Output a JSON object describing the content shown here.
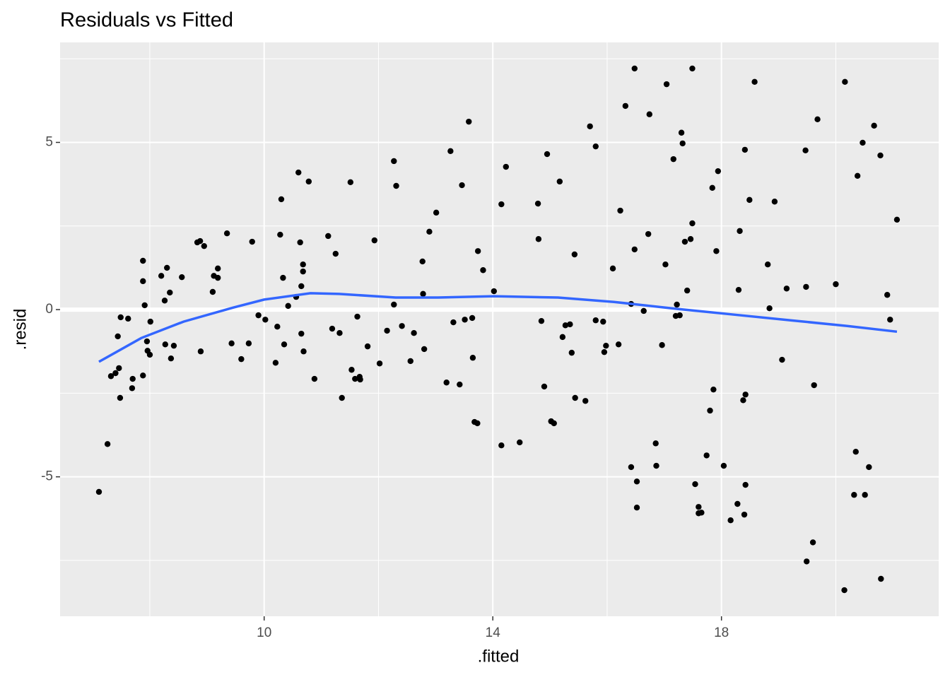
{
  "chart_data": {
    "type": "scatter",
    "title": "Residuals vs Fitted",
    "x_label": ".fitted",
    "y_label": ".resid",
    "color": "#000000",
    "panel_color": "#ebebeb",
    "grid": true,
    "xlim": [
      6.43,
      21.8
    ],
    "ylim": [
      -9.17,
      7.99
    ],
    "xticks": [
      10,
      14,
      18
    ],
    "yticks": [
      -5,
      0,
      5
    ],
    "xminor": [
      8,
      12,
      16,
      20
    ],
    "yminor": [
      -7.5,
      -2.5,
      2.5,
      7.5
    ],
    "hline": 0,
    "hline_color": "#ffffff",
    "x": [
      7.11,
      7.26,
      7.32,
      7.4,
      7.44,
      7.46,
      7.48,
      7.49,
      7.62,
      7.69,
      7.7,
      7.88,
      7.88,
      7.88,
      7.91,
      7.95,
      7.96,
      8.0,
      8.01,
      8.2,
      8.26,
      8.27,
      8.3,
      8.35,
      8.37,
      8.42,
      8.56,
      8.83,
      8.88,
      8.89,
      8.95,
      9.1,
      9.12,
      9.19,
      9.19,
      9.35,
      9.43,
      9.6,
      9.73,
      9.79,
      9.9,
      10.02,
      10.2,
      10.23,
      10.3,
      10.28,
      10.33,
      10.35,
      10.42,
      10.56,
      10.6,
      10.63,
      10.65,
      10.65,
      10.68,
      10.68,
      10.69,
      10.78,
      10.88,
      11.12,
      11.19,
      11.25,
      11.32,
      11.36,
      11.51,
      11.53,
      11.59,
      11.63,
      11.67,
      11.68,
      11.81,
      11.93,
      12.02,
      12.15,
      12.27,
      12.27,
      12.31,
      12.41,
      12.56,
      12.62,
      12.77,
      12.78,
      12.8,
      12.89,
      13.01,
      13.19,
      13.26,
      13.31,
      13.42,
      13.46,
      13.51,
      13.58,
      13.64,
      13.65,
      13.68,
      13.73,
      13.74,
      13.83,
      14.02,
      14.15,
      14.15,
      14.23,
      14.47,
      14.79,
      14.8,
      14.85,
      14.9,
      14.95,
      15.02,
      15.07,
      15.17,
      15.22,
      15.27,
      15.35,
      15.38,
      15.43,
      15.44,
      15.62,
      15.7,
      15.8,
      15.8,
      15.93,
      15.95,
      15.98,
      16.1,
      16.2,
      16.23,
      16.32,
      16.42,
      16.42,
      16.48,
      16.52,
      16.52,
      16.64,
      16.74,
      16.72,
      16.85,
      16.86,
      16.96,
      17.02,
      17.04,
      17.16,
      17.2,
      17.22,
      17.27,
      17.3,
      17.32,
      17.36,
      17.4,
      17.46,
      17.49,
      17.54,
      17.6,
      17.6,
      17.65,
      17.74,
      17.8,
      17.86,
      17.84,
      17.91,
      17.94,
      18.04,
      18.16,
      18.28,
      18.3,
      18.32,
      18.38,
      18.4,
      18.41,
      18.42,
      18.42,
      18.49,
      18.58,
      18.81,
      18.84,
      18.93,
      19.06,
      19.14,
      19.47,
      19.48,
      19.49,
      19.6,
      19.62,
      19.68,
      20.0,
      20.15,
      20.16,
      20.32,
      20.35,
      20.38,
      20.47,
      20.51,
      20.58,
      20.67,
      20.78,
      20.79,
      20.9,
      20.95,
      21.07,
      16.48,
      17.49
    ],
    "y": [
      -5.45,
      -4.02,
      -1.99,
      -1.9,
      -0.8,
      -1.75,
      -2.64,
      -0.23,
      -0.27,
      -2.35,
      -2.07,
      1.46,
      0.85,
      -1.97,
      0.13,
      -0.95,
      -1.23,
      -1.35,
      -0.36,
      1.01,
      0.27,
      -1.04,
      1.25,
      0.51,
      -1.46,
      -1.08,
      0.97,
      2.01,
      2.05,
      -1.25,
      1.9,
      0.53,
      1.01,
      0.95,
      1.23,
      2.28,
      -1.01,
      -1.48,
      -1.01,
      2.03,
      -0.17,
      -0.3,
      -1.59,
      -0.51,
      3.3,
      2.24,
      0.95,
      -1.04,
      0.11,
      0.38,
      4.1,
      2.01,
      0.7,
      -0.72,
      1.14,
      1.35,
      -1.25,
      3.83,
      -2.07,
      2.2,
      -0.57,
      1.67,
      -0.7,
      -2.64,
      3.81,
      -1.8,
      -2.07,
      -0.21,
      -2.01,
      -2.09,
      -1.1,
      2.07,
      -1.61,
      -0.63,
      4.44,
      0.15,
      3.7,
      -0.49,
      -1.54,
      -0.7,
      1.44,
      0.47,
      -1.18,
      2.33,
      2.9,
      -2.18,
      4.74,
      -0.38,
      -2.24,
      3.72,
      -0.3,
      5.62,
      -0.25,
      -1.44,
      -3.36,
      -3.4,
      1.75,
      1.18,
      0.55,
      3.15,
      -4.06,
      4.27,
      -3.97,
      3.17,
      2.11,
      -0.34,
      -2.3,
      4.65,
      -3.34,
      -3.4,
      3.83,
      -0.82,
      -0.47,
      -0.44,
      -1.29,
      1.65,
      -2.64,
      -2.73,
      5.48,
      4.88,
      -0.32,
      -0.36,
      -1.27,
      -1.08,
      1.23,
      -1.04,
      2.96,
      6.09,
      -4.71,
      0.17,
      1.8,
      -5.14,
      -5.92,
      -0.04,
      5.84,
      2.26,
      -4.0,
      -4.67,
      -1.06,
      1.35,
      6.74,
      4.5,
      -0.19,
      0.15,
      -0.17,
      5.29,
      4.97,
      2.03,
      0.57,
      2.11,
      2.58,
      -5.22,
      -5.9,
      -6.09,
      -6.07,
      -4.36,
      -3.02,
      -2.39,
      3.64,
      1.75,
      4.14,
      -4.67,
      -6.3,
      -5.81,
      0.59,
      2.35,
      -2.71,
      -6.13,
      4.78,
      -2.54,
      -5.24,
      3.28,
      6.81,
      1.35,
      0.04,
      3.23,
      -1.5,
      0.63,
      4.76,
      0.68,
      -7.53,
      -6.96,
      -2.26,
      5.69,
      0.76,
      -8.39,
      6.81,
      -5.54,
      -4.25,
      4.0,
      4.99,
      -5.54,
      -4.71,
      5.5,
      4.61,
      -8.05,
      0.44,
      -0.3,
      2.69,
      7.21,
      7.21
    ],
    "smooth": {
      "color": "#3366ff",
      "x": [
        7.11,
        7.85,
        8.59,
        9.46,
        10.0,
        10.81,
        11.31,
        12.3,
        13.04,
        14.02,
        15.14,
        16.12,
        17.23,
        18.22,
        19.21,
        20.2,
        21.07
      ],
      "y": [
        -1.56,
        -0.85,
        -0.36,
        0.06,
        0.3,
        0.49,
        0.47,
        0.36,
        0.36,
        0.4,
        0.36,
        0.23,
        0.02,
        -0.15,
        -0.32,
        -0.49,
        -0.66
      ]
    }
  }
}
